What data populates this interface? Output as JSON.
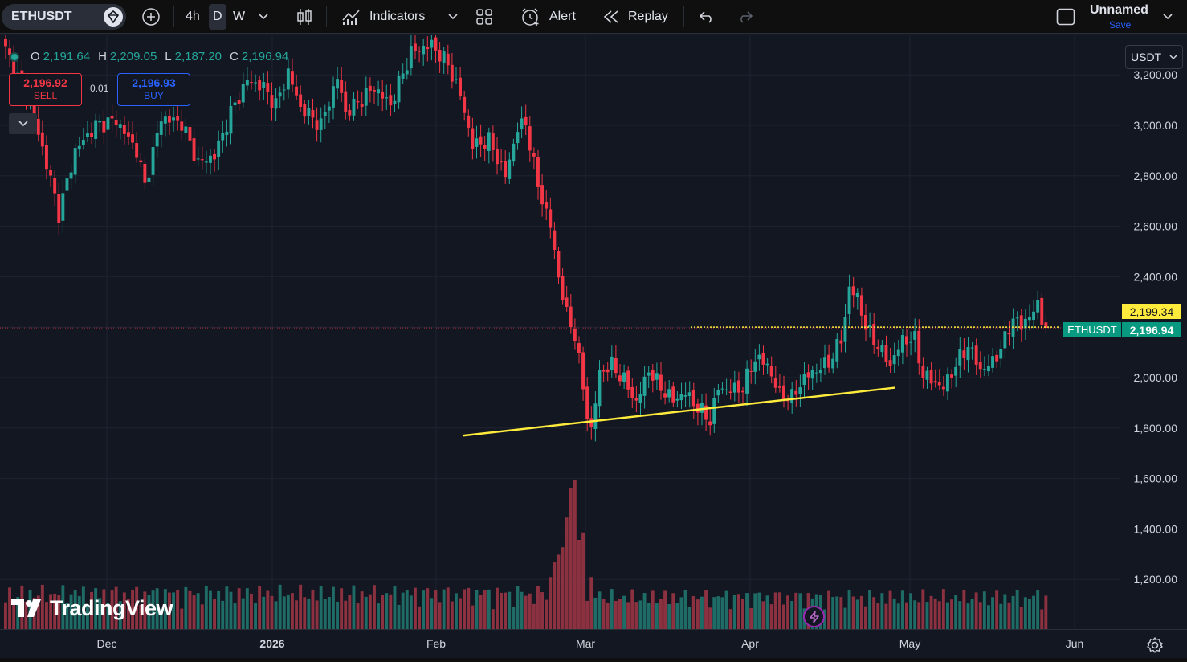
{
  "toolbar": {
    "symbol": "ETHUSDT",
    "intervals": [
      "4h",
      "D",
      "W"
    ],
    "active_interval": "D",
    "indicators_label": "Indicators",
    "alert_label": "Alert",
    "replay_label": "Replay",
    "layout_name": "Unnamed",
    "save_label": "Save"
  },
  "legend": {
    "o_label": "O",
    "o_value": "2,191.64",
    "h_label": "H",
    "h_value": "2,209.05",
    "l_label": "L",
    "l_value": "2,187.20",
    "c_label": "C",
    "c_value": "2,196.94"
  },
  "trade": {
    "sell_price": "2,196.92",
    "sell_label": "SELL",
    "buy_price": "2,196.93",
    "buy_label": "BUY",
    "spread": "0.01"
  },
  "currency": "USDT",
  "watermark": "TradingView",
  "price_tags": {
    "high_marker": "2,199.34",
    "symbol_tag": "ETHUSDT",
    "last_price": "2,196.94"
  },
  "colors": {
    "up": "#26a69a",
    "down": "#f23645",
    "trendline": "#ffeb3b",
    "background": "#131722"
  },
  "chart_data": {
    "type": "candlestick",
    "title": "",
    "ylim": [
      1000,
      3300
    ],
    "y_ticks": [
      "3,200.00",
      "3,000.00",
      "2,800.00",
      "2,600.00",
      "2,400.00",
      "2,200.00",
      "2,000.00",
      "1,800.00",
      "1,600.00",
      "1,400.00",
      "1,200.00"
    ],
    "y_tick_values": [
      3200,
      3000,
      2800,
      2600,
      2400,
      2200,
      2000,
      1800,
      1600,
      1400,
      1200
    ],
    "x_ticks": [
      "Dec",
      "2026",
      "Feb",
      "Mar",
      "Apr",
      "May",
      "Jun"
    ],
    "last_price": 2196.94,
    "trendline": {
      "from": {
        "date": "2026-02-06",
        "price": 1770
      },
      "to": {
        "date": "2026-04-28",
        "price": 1960
      }
    },
    "price_anchors": [
      [
        0,
        3300
      ],
      [
        6,
        3080
      ],
      [
        10,
        2850
      ],
      [
        13,
        2650
      ],
      [
        17,
        2900
      ],
      [
        22,
        3000
      ],
      [
        27,
        3020
      ],
      [
        32,
        2900
      ],
      [
        34,
        2760
      ],
      [
        38,
        3030
      ],
      [
        43,
        3010
      ],
      [
        47,
        2850
      ],
      [
        51,
        2880
      ],
      [
        55,
        3050
      ],
      [
        59,
        3180
      ],
      [
        63,
        3150
      ],
      [
        66,
        3080
      ],
      [
        69,
        3210
      ],
      [
        72,
        3070
      ],
      [
        77,
        3000
      ],
      [
        81,
        3190
      ],
      [
        83,
        3050
      ],
      [
        86,
        3090
      ],
      [
        90,
        3150
      ],
      [
        94,
        3080
      ],
      [
        99,
        3290
      ],
      [
        104,
        3320
      ],
      [
        108,
        3240
      ],
      [
        111,
        3120
      ],
      [
        114,
        2920
      ],
      [
        118,
        2940
      ],
      [
        122,
        2800
      ],
      [
        125,
        2990
      ],
      [
        127,
        3010
      ],
      [
        130,
        2760
      ],
      [
        133,
        2600
      ],
      [
        135,
        2400
      ],
      [
        137,
        2250
      ],
      [
        139,
        2170
      ],
      [
        141,
        1960
      ],
      [
        142,
        1850
      ],
      [
        143,
        1790
      ],
      [
        145,
        2020
      ],
      [
        148,
        2050
      ],
      [
        151,
        1990
      ],
      [
        154,
        1900
      ],
      [
        157,
        2030
      ],
      [
        160,
        1960
      ],
      [
        163,
        1910
      ],
      [
        166,
        1940
      ],
      [
        169,
        1880
      ],
      [
        172,
        1830
      ],
      [
        174,
        1960
      ],
      [
        177,
        1950
      ],
      [
        180,
        1960
      ],
      [
        183,
        2080
      ],
      [
        186,
        2050
      ],
      [
        189,
        1930
      ],
      [
        192,
        1920
      ],
      [
        195,
        2000
      ],
      [
        198,
        2030
      ],
      [
        201,
        2060
      ],
      [
        204,
        2150
      ],
      [
        206,
        2350
      ],
      [
        208,
        2320
      ],
      [
        210,
        2200
      ],
      [
        212,
        2150
      ],
      [
        214,
        2100
      ],
      [
        216,
        2050
      ],
      [
        219,
        2150
      ],
      [
        222,
        2150
      ],
      [
        224,
        2010
      ],
      [
        226,
        1990
      ],
      [
        229,
        1960
      ],
      [
        232,
        2050
      ],
      [
        235,
        2130
      ],
      [
        238,
        2030
      ],
      [
        241,
        2060
      ],
      [
        244,
        2150
      ],
      [
        246,
        2240
      ],
      [
        248,
        2200
      ],
      [
        250,
        2250
      ],
      [
        252,
        2280
      ],
      [
        254,
        2196
      ]
    ],
    "volume_spikes": [
      [
        133,
        0.35
      ],
      [
        134,
        0.45
      ],
      [
        135,
        0.5
      ],
      [
        136,
        0.55
      ],
      [
        137,
        0.75
      ],
      [
        138,
        0.95
      ],
      [
        139,
        1.0
      ],
      [
        140,
        0.6
      ],
      [
        141,
        0.65
      ],
      [
        143,
        0.35
      ]
    ]
  }
}
